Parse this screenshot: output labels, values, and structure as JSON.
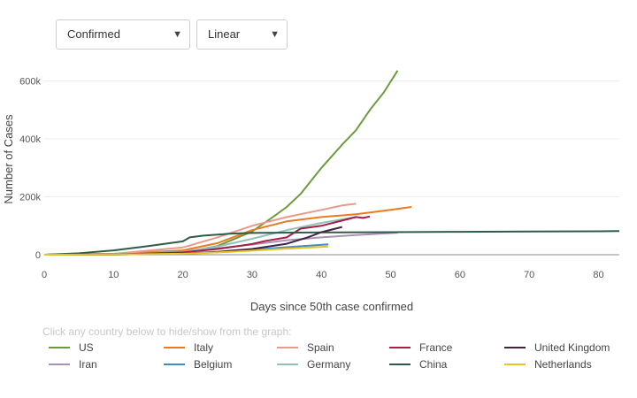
{
  "controls": {
    "metric_select": "Confirmed",
    "scale_select": "Linear"
  },
  "legend_note": "Click any country below to hide/show from the graph:",
  "chart_data": {
    "type": "line",
    "xlabel": "Days since 50th case confirmed",
    "ylabel": "Number of Cases",
    "xlim": [
      0,
      83
    ],
    "ylim": [
      0,
      640000
    ],
    "x_ticks": [
      0,
      10,
      20,
      30,
      40,
      50,
      60,
      70,
      80
    ],
    "y_ticks": [
      0,
      200000,
      400000,
      600000
    ],
    "y_tick_labels": [
      "0",
      "200k",
      "400k",
      "600k"
    ],
    "grid": true,
    "legend_position": "bottom",
    "series": [
      {
        "name": "US",
        "color": "#6e9a3e",
        "x": [
          0,
          10,
          20,
          25,
          30,
          33,
          35,
          37,
          40,
          43,
          45,
          47,
          49,
          51
        ],
        "y": [
          0,
          1000,
          8000,
          30000,
          80000,
          130000,
          165000,
          210000,
          300000,
          380000,
          430000,
          500000,
          560000,
          636000
        ]
      },
      {
        "name": "Iran",
        "color": "#a992b8",
        "x": [
          0,
          10,
          20,
          25,
          30,
          35,
          40,
          45,
          51
        ],
        "y": [
          0,
          2000,
          12000,
          22000,
          35000,
          50000,
          60000,
          68000,
          76000
        ]
      },
      {
        "name": "Italy",
        "color": "#ec7a22",
        "x": [
          0,
          10,
          20,
          25,
          30,
          35,
          40,
          45,
          50,
          53
        ],
        "y": [
          0,
          3000,
          15000,
          40000,
          85000,
          115000,
          130000,
          140000,
          155000,
          165000
        ]
      },
      {
        "name": "Belgium",
        "color": "#3d8ec6",
        "x": [
          0,
          10,
          20,
          25,
          30,
          35,
          41
        ],
        "y": [
          0,
          1000,
          4000,
          9000,
          17000,
          26000,
          36000
        ]
      },
      {
        "name": "Spain",
        "color": "#e89a8c",
        "x": [
          0,
          10,
          20,
          25,
          30,
          35,
          40,
          43,
          45
        ],
        "y": [
          0,
          3000,
          25000,
          60000,
          100000,
          130000,
          155000,
          170000,
          176000
        ]
      },
      {
        "name": "Germany",
        "color": "#8fc3b8",
        "x": [
          0,
          10,
          20,
          25,
          30,
          35,
          40,
          45
        ],
        "y": [
          0,
          2000,
          10000,
          28000,
          55000,
          85000,
          110000,
          130000
        ]
      },
      {
        "name": "France",
        "color": "#a51e45",
        "x": [
          0,
          10,
          20,
          25,
          28,
          30,
          32,
          35,
          37,
          40,
          43,
          45,
          46,
          47
        ],
        "y": [
          0,
          1000,
          8000,
          20000,
          30000,
          37000,
          48000,
          60000,
          90000,
          100000,
          118000,
          130000,
          127000,
          132000
        ]
      },
      {
        "name": "China",
        "color": "#2e5c47",
        "x": [
          0,
          5,
          10,
          15,
          20,
          21,
          23,
          27,
          30,
          40,
          50,
          60,
          70,
          80,
          83
        ],
        "y": [
          0,
          5000,
          15000,
          30000,
          46000,
          60000,
          66000,
          73000,
          75000,
          77000,
          78000,
          79000,
          80000,
          81000,
          82000
        ]
      },
      {
        "name": "United Kingdom",
        "color": "#3f2341",
        "x": [
          0,
          10,
          20,
          25,
          30,
          35,
          38,
          40,
          43
        ],
        "y": [
          0,
          1000,
          4000,
          10000,
          20000,
          38000,
          60000,
          78000,
          96000
        ]
      },
      {
        "name": "Netherlands",
        "color": "#e6c421",
        "x": [
          0,
          10,
          20,
          25,
          30,
          35,
          41
        ],
        "y": [
          0,
          800,
          3500,
          8000,
          14000,
          21000,
          28000
        ]
      }
    ]
  }
}
